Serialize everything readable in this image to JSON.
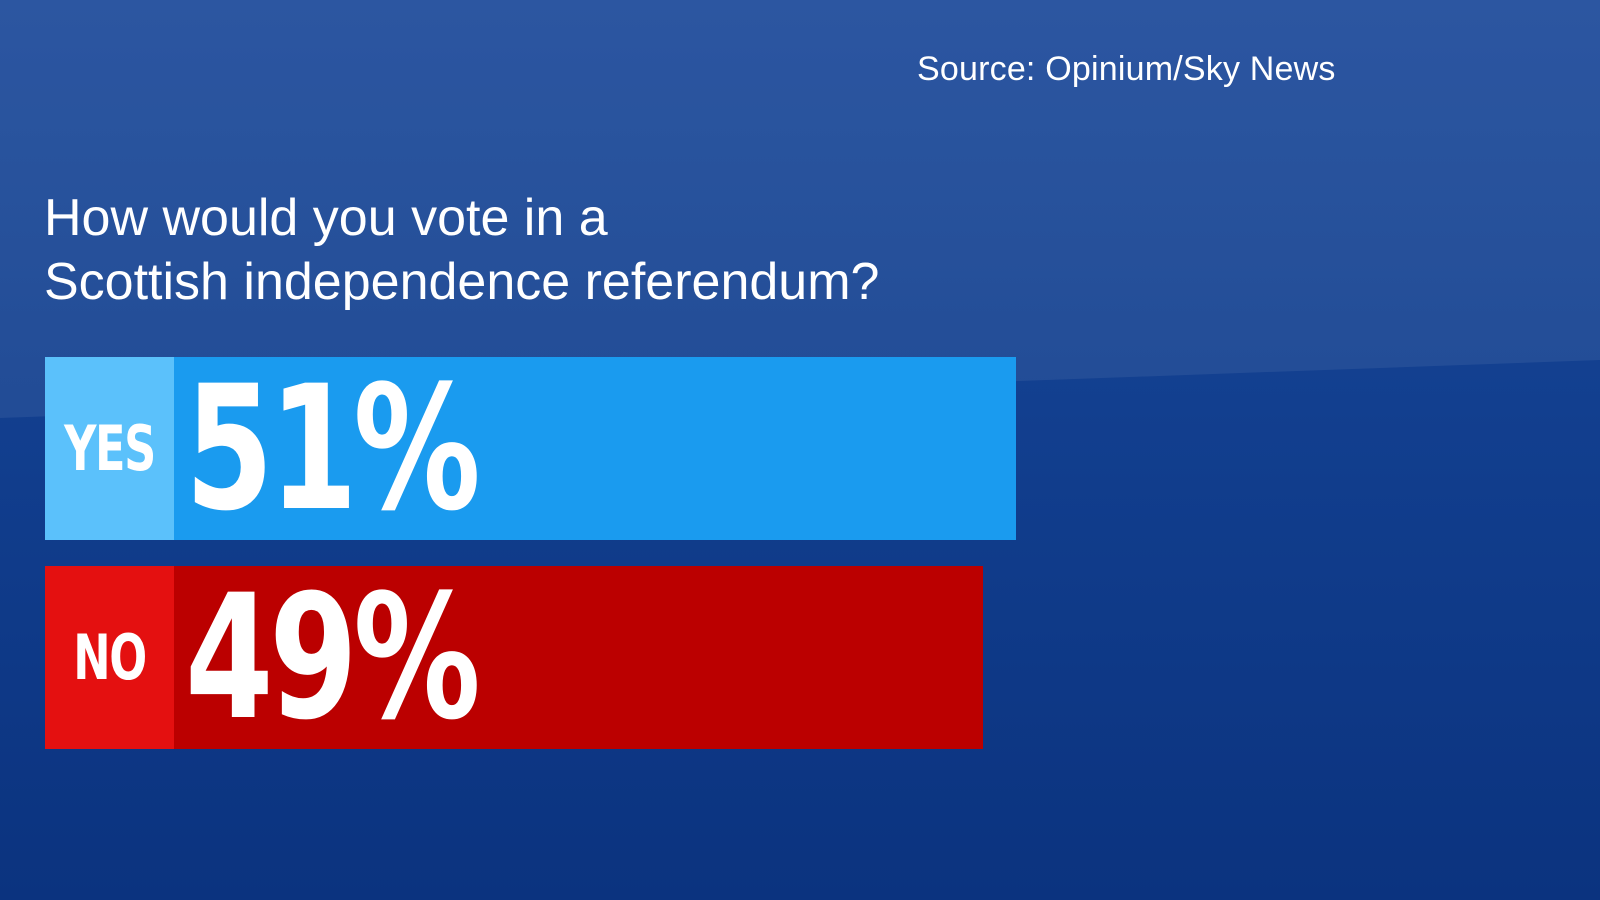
{
  "source": "Source: Opinium/Sky News",
  "question_lines": [
    "How would you vote in a",
    "Scottish independence referendum?"
  ],
  "colors": {
    "yes_label": "#5bc1fb",
    "yes_bar": "#1a9bef",
    "no_label": "#e41010",
    "no_bar": "#bb0000",
    "background": "#123f8f"
  },
  "chart_data": {
    "type": "bar",
    "orientation": "horizontal",
    "title": "How would you vote in a Scottish independence referendum?",
    "categories": [
      "YES",
      "NO"
    ],
    "values": [
      51,
      49
    ],
    "value_labels": [
      "51%",
      "49%"
    ],
    "unit": "%",
    "source": "Source: Opinium/Sky News"
  }
}
